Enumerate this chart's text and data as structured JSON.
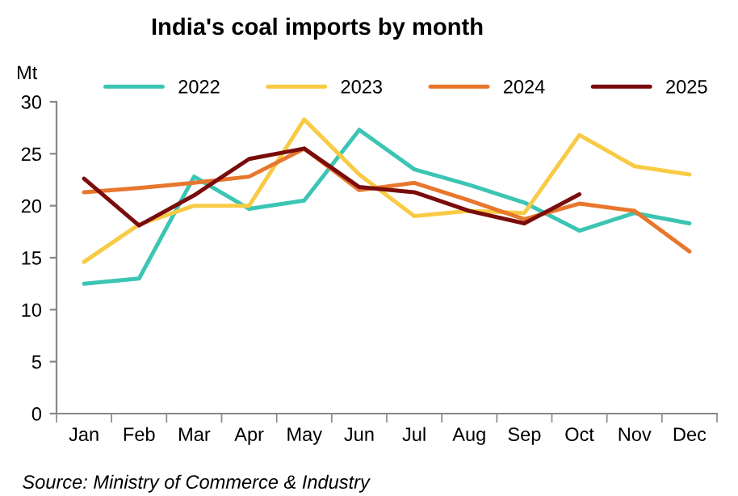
{
  "chart_data": {
    "type": "line",
    "title": "India's coal imports by month",
    "ylabel": "Mt",
    "categories": [
      "Jan",
      "Feb",
      "Mar",
      "Apr",
      "May",
      "Jun",
      "Jul",
      "Aug",
      "Sep",
      "Oct",
      "Nov",
      "Dec"
    ],
    "series": [
      {
        "name": "2022",
        "color": "#3cc5b4",
        "values": [
          12.5,
          13,
          22.8,
          19.7,
          20.5,
          27.3,
          23.5,
          22,
          20.3,
          17.6,
          19.3,
          18.3
        ]
      },
      {
        "name": "2023",
        "color": "#f8cb45",
        "values": [
          14.6,
          18.2,
          20,
          20,
          28.3,
          23,
          19,
          19.5,
          19.3,
          26.8,
          23.8,
          23
        ]
      },
      {
        "name": "2024",
        "color": "#e8772e",
        "values": [
          21.3,
          21.7,
          22.2,
          22.8,
          25.5,
          21.5,
          22.2,
          20.5,
          18.7,
          20.2,
          19.5,
          15.6
        ]
      },
      {
        "name": "2025",
        "color": "#7a0c0c",
        "values": [
          22.6,
          18.1,
          21,
          24.5,
          25.5,
          21.8,
          21.3,
          19.5,
          18.3,
          21.1,
          null,
          null
        ]
      }
    ],
    "ylim": [
      0,
      30
    ],
    "yticks": [
      0,
      5,
      10,
      15,
      20,
      25,
      30
    ],
    "grid": false,
    "legend": "top",
    "marker": "none",
    "line_style": "solid",
    "annotations": [
      "Source: Ministry of Commerce & Industry"
    ]
  }
}
